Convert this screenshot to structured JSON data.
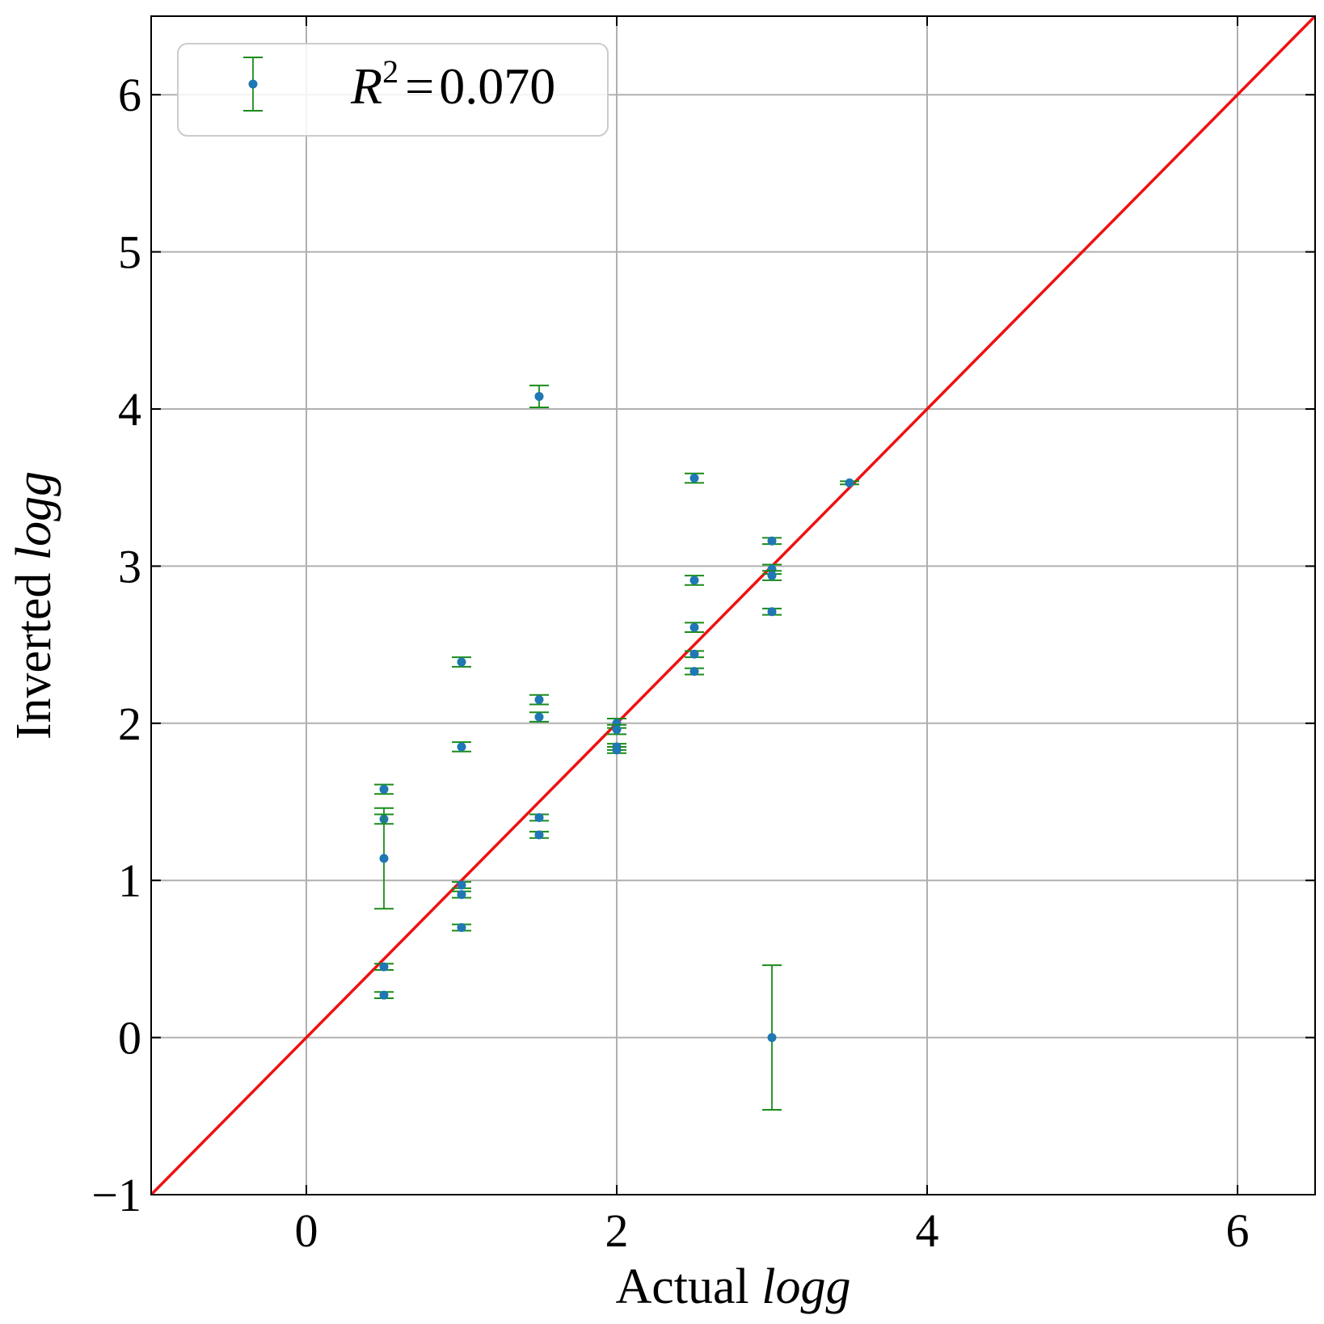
{
  "chart_data": {
    "type": "scatter",
    "xlabel": {
      "prefix": "Actual ",
      "var": "logg"
    },
    "ylabel": {
      "prefix": "Inverted ",
      "var": "logg"
    },
    "xlim": [
      -1,
      6.5
    ],
    "ylim": [
      -1,
      6.5
    ],
    "xticks": [
      0,
      2,
      4,
      6
    ],
    "yticks": [
      -1,
      0,
      1,
      2,
      3,
      4,
      5,
      6
    ],
    "xtick_labels": [
      "0",
      "2",
      "4",
      "6"
    ],
    "ytick_labels": [
      "−1",
      "0",
      "1",
      "2",
      "3",
      "4",
      "5",
      "6"
    ],
    "grid": true,
    "legend": {
      "position": "top-left",
      "symbol": "R",
      "exponent": "2",
      "eq": "=",
      "value": "0.070"
    },
    "reference_line": {
      "x": [
        -1,
        6.5
      ],
      "y": [
        -1,
        6.5
      ],
      "color": "#ee1111"
    },
    "colors": {
      "points": "#1f77b4",
      "errorbars": "#1a8c1a"
    },
    "points": [
      {
        "x": 0.5,
        "y": 1.58,
        "err": 0.03
      },
      {
        "x": 0.5,
        "y": 1.39,
        "err": 0.03
      },
      {
        "x": 0.5,
        "y": 1.14,
        "err": 0.32
      },
      {
        "x": 0.5,
        "y": 0.45,
        "err": 0.02
      },
      {
        "x": 0.5,
        "y": 0.27,
        "err": 0.02
      },
      {
        "x": 1.0,
        "y": 2.39,
        "err": 0.03
      },
      {
        "x": 1.0,
        "y": 1.85,
        "err": 0.03
      },
      {
        "x": 1.0,
        "y": 0.97,
        "err": 0.02
      },
      {
        "x": 1.0,
        "y": 0.91,
        "err": 0.02
      },
      {
        "x": 1.0,
        "y": 0.7,
        "err": 0.02
      },
      {
        "x": 1.5,
        "y": 4.08,
        "err": 0.07
      },
      {
        "x": 1.5,
        "y": 2.15,
        "err": 0.03
      },
      {
        "x": 1.5,
        "y": 2.04,
        "err": 0.03
      },
      {
        "x": 1.5,
        "y": 1.4,
        "err": 0.02
      },
      {
        "x": 1.5,
        "y": 1.29,
        "err": 0.02
      },
      {
        "x": 2.0,
        "y": 2.0,
        "err": 0.03
      },
      {
        "x": 2.0,
        "y": 1.96,
        "err": 0.03
      },
      {
        "x": 2.0,
        "y": 1.85,
        "err": 0.02
      },
      {
        "x": 2.0,
        "y": 1.83,
        "err": 0.02
      },
      {
        "x": 2.5,
        "y": 3.56,
        "err": 0.03
      },
      {
        "x": 2.5,
        "y": 2.91,
        "err": 0.03
      },
      {
        "x": 2.5,
        "y": 2.61,
        "err": 0.03
      },
      {
        "x": 2.5,
        "y": 2.44,
        "err": 0.02
      },
      {
        "x": 2.5,
        "y": 2.33,
        "err": 0.02
      },
      {
        "x": 3.0,
        "y": 3.16,
        "err": 0.02
      },
      {
        "x": 3.0,
        "y": 2.98,
        "err": 0.03
      },
      {
        "x": 3.0,
        "y": 2.94,
        "err": 0.03
      },
      {
        "x": 3.0,
        "y": 2.71,
        "err": 0.02
      },
      {
        "x": 3.0,
        "y": 0.0,
        "err": 0.46
      },
      {
        "x": 3.5,
        "y": 3.53,
        "err": 0.01
      }
    ]
  }
}
